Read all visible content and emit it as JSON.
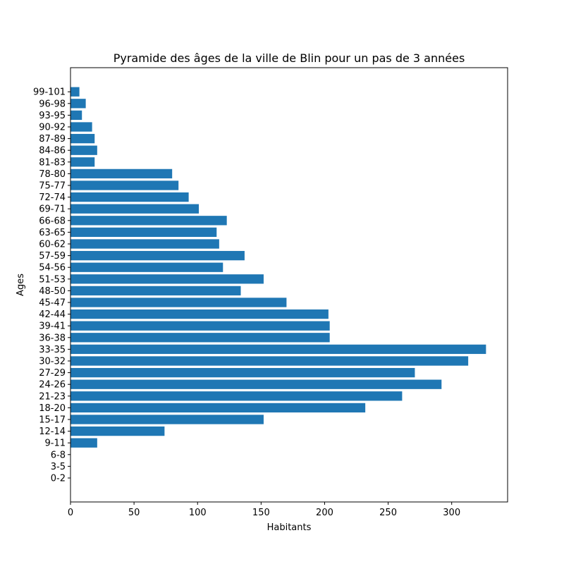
{
  "chart_data": {
    "type": "bar",
    "orientation": "horizontal",
    "title": "Pyramide des âges de la ville de Blin pour un pas de 3 années",
    "xlabel": "Habitants",
    "ylabel": "Ages",
    "categories": [
      "0-2",
      "3-5",
      "6-8",
      "9-11",
      "12-14",
      "15-17",
      "18-20",
      "21-23",
      "24-26",
      "27-29",
      "30-32",
      "33-35",
      "36-38",
      "39-41",
      "42-44",
      "45-47",
      "48-50",
      "51-53",
      "54-56",
      "57-59",
      "60-62",
      "63-65",
      "66-68",
      "69-71",
      "72-74",
      "75-77",
      "78-80",
      "81-83",
      "84-86",
      "87-89",
      "90-92",
      "93-95",
      "96-98",
      "99-101"
    ],
    "values": [
      0,
      0,
      0,
      21,
      74,
      152,
      232,
      261,
      292,
      271,
      313,
      327,
      204,
      204,
      203,
      170,
      134,
      152,
      120,
      137,
      117,
      115,
      123,
      101,
      93,
      85,
      80,
      19,
      21,
      19,
      17,
      9,
      12,
      7
    ],
    "xlim": [
      0,
      344
    ],
    "xticks": [
      0,
      50,
      100,
      150,
      200,
      250,
      300
    ],
    "bar_color": "#1f77b4",
    "grid": false
  }
}
